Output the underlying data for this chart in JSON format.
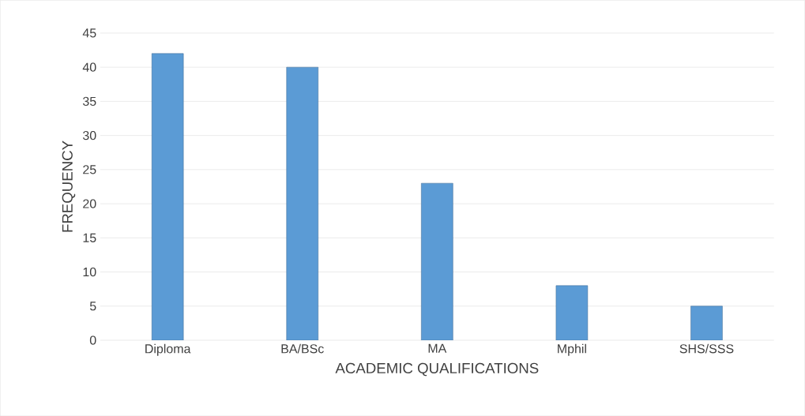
{
  "chart_data": {
    "type": "bar",
    "xlabel": "ACADEMIC QUALIFICATIONS",
    "ylabel": "FREQUENCY",
    "categories": [
      "Diploma",
      "BA/BSc",
      "MA",
      "Mphil",
      "SHS/SSS"
    ],
    "values": [
      42,
      40,
      23,
      8,
      5
    ],
    "color": "#5b9bd5",
    "ylim": [
      0,
      45
    ],
    "yticks": [
      0,
      5,
      10,
      15,
      20,
      25,
      30,
      35,
      40,
      45
    ],
    "grid": "y"
  }
}
